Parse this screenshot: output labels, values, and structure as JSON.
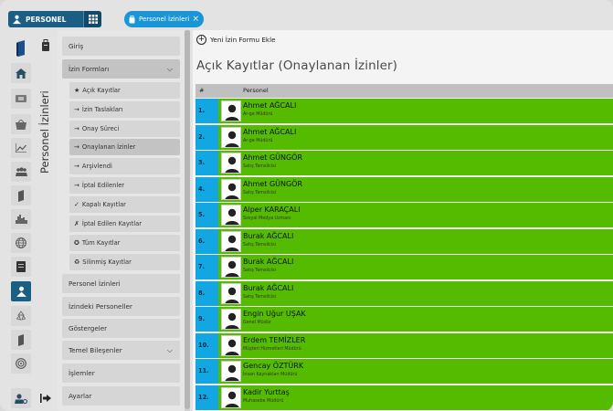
{
  "topbar": {
    "app_label": "PERSONEL",
    "tab_label": "Personel İzinleri",
    "tab_close": "×"
  },
  "sidebar_title": "Personel İzinleri",
  "rail_icons": [
    "brand-logo-icon",
    "home-icon",
    "ticket-icon",
    "basket-icon",
    "chart-line-icon",
    "users-icon",
    "book-icon",
    "city-icon",
    "globe-icon",
    "document-icon",
    "personnel-icon",
    "recycle-icon",
    "book-icon",
    "target-icon",
    "user-settings-icon"
  ],
  "menu": {
    "giris": "Giriş",
    "izin_formlari": "İzin Formları",
    "sub": [
      {
        "glyph": "★",
        "label": "Açık Kayıtlar"
      },
      {
        "glyph": "→",
        "label": "İzin Taslakları"
      },
      {
        "glyph": "→",
        "label": "Onay Süreci"
      },
      {
        "glyph": "→",
        "label": "Onaylanan İzinler"
      },
      {
        "glyph": "→",
        "label": "Arşivlendi"
      },
      {
        "glyph": "→",
        "label": "İptal Edilenler"
      },
      {
        "glyph": "✓",
        "label": "Kapalı Kayıtlar"
      },
      {
        "glyph": "✗",
        "label": "İptal Edilen Kayıtlar"
      },
      {
        "glyph": "✪",
        "label": "Tüm Kayıtlar"
      },
      {
        "glyph": "♻",
        "label": "Silinmiş Kayıtlar"
      }
    ],
    "personel_izinleri": "Personel İzinleri",
    "izindeki_personeller": "İzindeki Personeller",
    "gostergeler": "Göstergeler",
    "temel_bilesenler": "Temel Bileşenler",
    "islemler": "İşlemler",
    "ayarlar": "Ayarlar"
  },
  "main": {
    "new_form_label": "Yeni İzin Formu Ekle",
    "title": "Açık Kayıtlar (Onaylanan İzinler)",
    "col_num": "#",
    "col_personel": "Personel",
    "rows": [
      {
        "num": "1.",
        "name": "Ahmet AĞCALI",
        "title": "Ar-ge Müdürü"
      },
      {
        "num": "2.",
        "name": "Ahmet AĞCALI",
        "title": "Ar-ge Müdürü"
      },
      {
        "num": "3.",
        "name": "Ahmet GÜNGÖR",
        "title": "Satış Temsilcisi"
      },
      {
        "num": "4.",
        "name": "Ahmet GÜNGÖR",
        "title": "Satış Temsilcisi"
      },
      {
        "num": "5.",
        "name": "Alper KARAÇALI",
        "title": "Sosyal Medya Uzmanı"
      },
      {
        "num": "6.",
        "name": "Burak AĞCALI",
        "title": "Satış Temsilcisi"
      },
      {
        "num": "7.",
        "name": "Burak AĞCALI",
        "title": "Satış Temsilcisi"
      },
      {
        "num": "8.",
        "name": "Burak AĞCALI",
        "title": "Satış Temsilcisi"
      },
      {
        "num": "9.",
        "name": "Engin Uğur UŞAK",
        "title": "Genel Müdür"
      },
      {
        "num": "10.",
        "name": "Erdem TEMİZLER",
        "title": "Müşteri Hizmetleri Müdürü"
      },
      {
        "num": "11.",
        "name": "Gencay ÖZTÜRK",
        "title": "İnsan Kaynakları Müdürü"
      },
      {
        "num": "12.",
        "name": "Kadir Yurttaş",
        "title": "Muhasebe Müdürü"
      }
    ]
  },
  "colors": {
    "brand": "#1b5e83",
    "tab_chip": "#1a96d8",
    "row_green": "#55bb00",
    "row_num_blue": "#12a7e3"
  }
}
